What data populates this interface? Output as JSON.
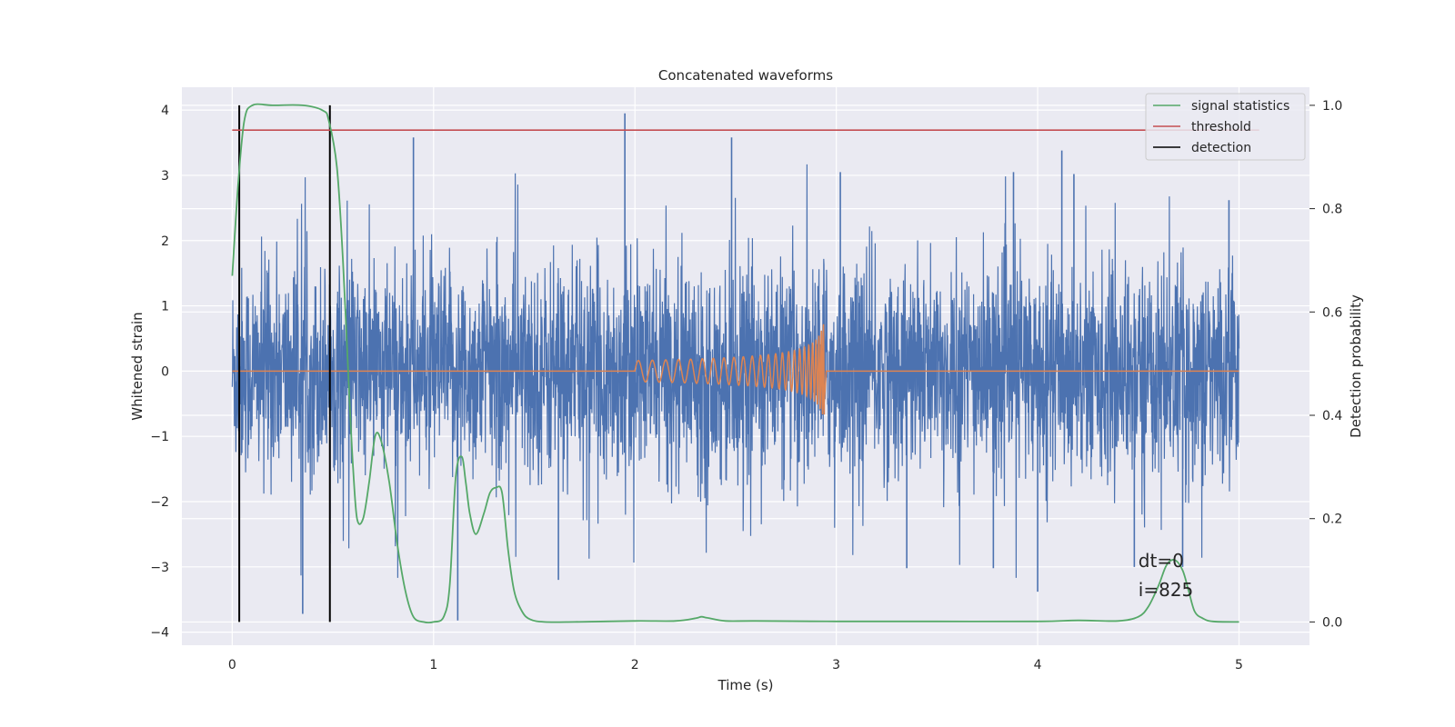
{
  "chart_data": {
    "type": "line",
    "title": "Concatenated waveforms",
    "xlabel": "Time (s)",
    "ylabel": "Whitened strain",
    "y2label": "Detection probability",
    "xlim": [
      -0.25,
      5.35
    ],
    "ylim": [
      -4.2,
      4.35
    ],
    "y2lim": [
      -0.045,
      1.035
    ],
    "xticks": [
      0,
      1,
      2,
      3,
      4,
      5
    ],
    "yticks": [
      -4,
      -3,
      -2,
      -1,
      0,
      1,
      2,
      3,
      4
    ],
    "y2ticks": [
      0.0,
      0.2,
      0.4,
      0.6,
      0.8,
      1.0
    ],
    "xtick_labels": [
      "0",
      "1",
      "2",
      "3",
      "4",
      "5"
    ],
    "ytick_labels": [
      "−4",
      "−3",
      "−2",
      "−1",
      "0",
      "1",
      "2",
      "3",
      "4"
    ],
    "y2tick_labels": [
      "0.0",
      "0.2",
      "0.4",
      "0.6",
      "0.8",
      "1.0"
    ],
    "grid": true,
    "legend_position": "top-right",
    "series": [
      {
        "axis": "left",
        "color": "#4c72b0",
        "description_values": "noise band",
        "x": [
          0,
          5
        ],
        "envelope_abs_max": 3.96,
        "peaks": [
          [
            0.9,
            3.58
          ],
          [
            1.95,
            3.95
          ],
          [
            2.48,
            3.58
          ],
          [
            3.02,
            3.05
          ],
          [
            3.88,
            3.05
          ],
          [
            4.12,
            3.38
          ],
          [
            4.18,
            3.02
          ],
          [
            4.95,
            2.62
          ],
          [
            0.35,
            -3.72
          ],
          [
            1.12,
            -3.82
          ],
          [
            1.62,
            -3.2
          ],
          [
            3.35,
            -3.02
          ],
          [
            3.78,
            -3.02
          ],
          [
            4.0,
            -3.38
          ],
          [
            4.48,
            -3.0
          ],
          [
            4.72,
            -3.0
          ]
        ]
      },
      {
        "axis": "left",
        "color": "#dd8452",
        "x_start": 2.0,
        "x_end": 2.94,
        "final_amplitude": 0.75
      },
      {
        "name": "signal statistics",
        "axis": "right",
        "color": "#55a868",
        "x": [
          0,
          0.03,
          0.06,
          0.1,
          0.2,
          0.35,
          0.45,
          0.48,
          0.52,
          0.55,
          0.58,
          0.6,
          0.62,
          0.65,
          0.68,
          0.71,
          0.74,
          0.78,
          0.82,
          0.86,
          0.9,
          0.95,
          1.0,
          1.05,
          1.08,
          1.11,
          1.14,
          1.16,
          1.18,
          1.21,
          1.25,
          1.28,
          1.31,
          1.34,
          1.37,
          1.4,
          1.44,
          1.48,
          1.55,
          1.7,
          2.0,
          2.2,
          2.3,
          2.33,
          2.36,
          2.45,
          2.6,
          3.0,
          3.5,
          4.0,
          4.2,
          4.4,
          4.5,
          4.55,
          4.6,
          4.64,
          4.68,
          4.72,
          4.75,
          4.78,
          4.82,
          4.87,
          5.0
        ],
        "values": [
          0.67,
          0.85,
          0.97,
          1.0,
          1.0,
          1.0,
          0.99,
          0.97,
          0.88,
          0.7,
          0.45,
          0.3,
          0.2,
          0.2,
          0.27,
          0.36,
          0.35,
          0.27,
          0.15,
          0.06,
          0.01,
          0.0,
          0.0,
          0.01,
          0.07,
          0.28,
          0.32,
          0.27,
          0.21,
          0.17,
          0.21,
          0.25,
          0.26,
          0.25,
          0.14,
          0.06,
          0.02,
          0.005,
          0.0,
          0.0,
          0.002,
          0.002,
          0.007,
          0.01,
          0.008,
          0.002,
          0.002,
          0.001,
          0.001,
          0.001,
          0.003,
          0.002,
          0.01,
          0.03,
          0.07,
          0.11,
          0.12,
          0.1,
          0.06,
          0.02,
          0.007,
          0.001,
          0.0
        ]
      },
      {
        "name": "threshold",
        "axis": "right",
        "color": "#c44e52",
        "x": [
          0,
          5.1
        ],
        "values": [
          0.952,
          0.952
        ]
      },
      {
        "name": "detection",
        "axis": "right",
        "color": "#000000",
        "x_positions": [
          0.035,
          0.485
        ],
        "y_range": [
          0.0,
          1.0
        ]
      }
    ],
    "annotations": [
      {
        "text": "dt=0",
        "x": 4.5,
        "y": -3.0
      },
      {
        "text": "i=825",
        "x": 4.5,
        "y": -3.45
      }
    ]
  }
}
